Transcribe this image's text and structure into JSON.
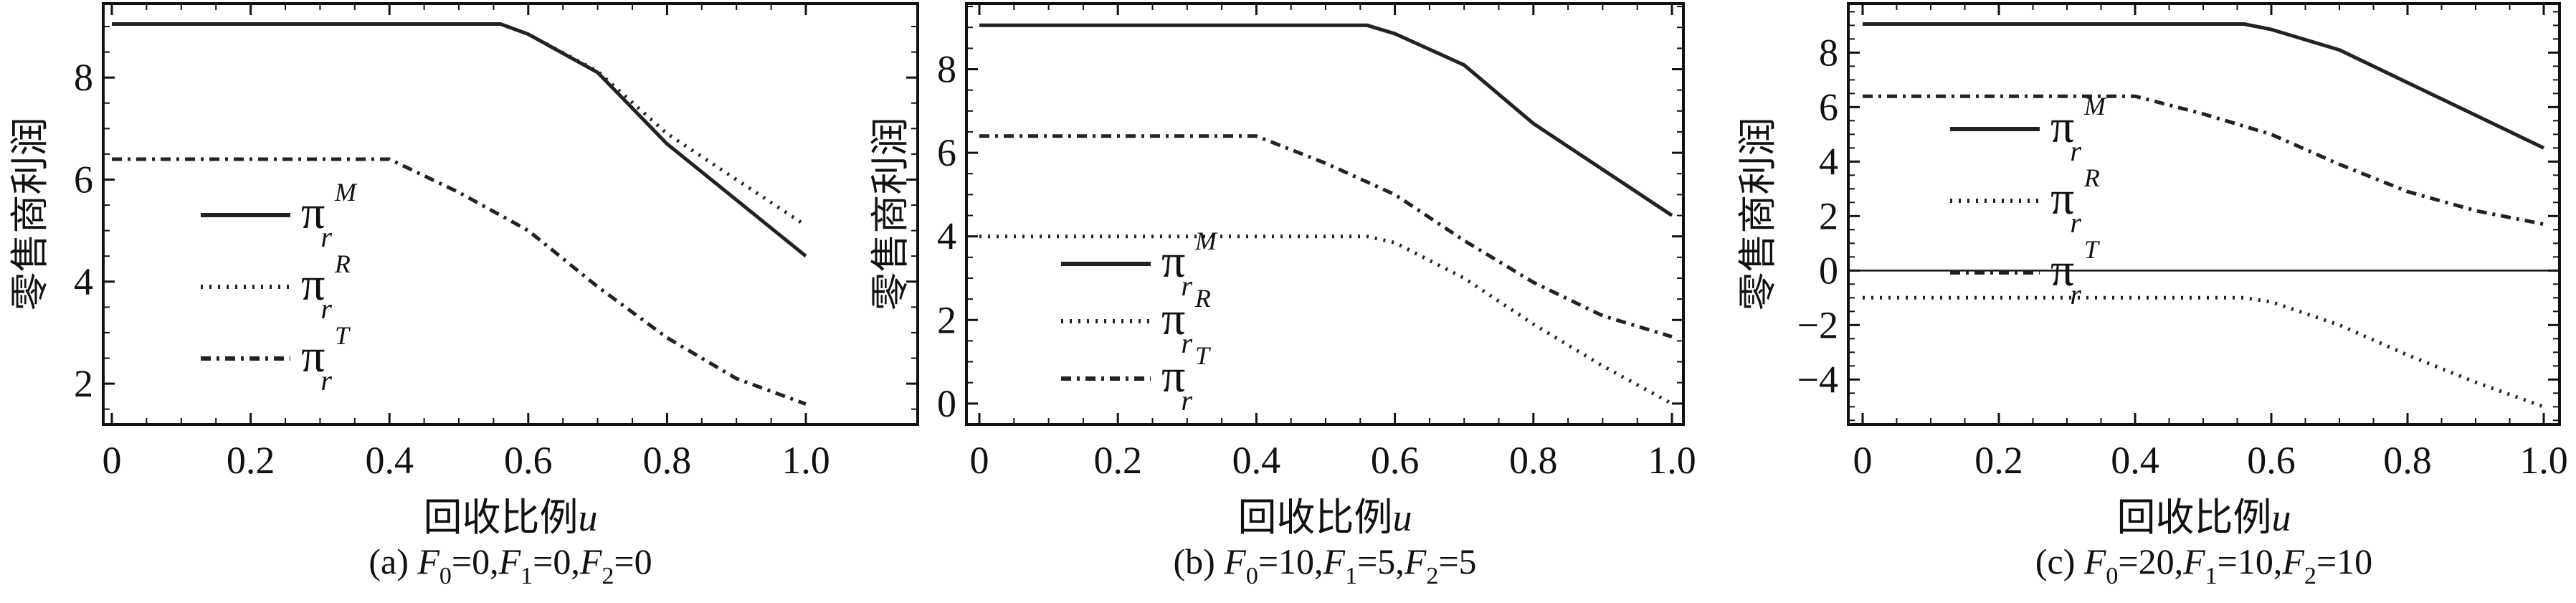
{
  "chart_data": [
    {
      "type": "line",
      "caption": {
        "label": "(a)",
        "params": [
          {
            "name": "F",
            "sub": "0",
            "value": "0"
          },
          {
            "name": "F",
            "sub": "1",
            "value": "0"
          },
          {
            "name": "F",
            "sub": "2",
            "value": "0"
          }
        ]
      },
      "xlabel": "回收比例",
      "xlabel_var": "u",
      "ylabel": "零售商利润",
      "xlim": [
        0,
        1
      ],
      "ylim": [
        1.2,
        9.45
      ],
      "xticks": [
        "0",
        "0.2",
        "0.4",
        "0.6",
        "0.8",
        "1.0"
      ],
      "yticks": [
        2,
        4,
        6,
        8
      ],
      "zero_line": false,
      "x": [
        0,
        0.4,
        0.5,
        0.56,
        0.6,
        0.7,
        0.8,
        0.9,
        1.0
      ],
      "series": [
        {
          "name": "π_r^M",
          "symbol": "π",
          "sub": "r",
          "sup": "M",
          "style": "solid",
          "values": [
            9.05,
            9.05,
            9.05,
            9.05,
            8.85,
            8.1,
            6.7,
            5.6,
            4.5
          ]
        },
        {
          "name": "π_r^R",
          "symbol": "π",
          "sub": "r",
          "sup": "R",
          "style": "dotted",
          "values": [
            9.05,
            9.05,
            9.05,
            9.05,
            8.85,
            8.12,
            6.9,
            6.0,
            5.1
          ]
        },
        {
          "name": "π_r^T",
          "symbol": "π",
          "sub": "r",
          "sup": "T",
          "style": "dashdot",
          "values": [
            6.4,
            6.4,
            5.75,
            5.3,
            5.0,
            3.9,
            2.9,
            2.1,
            1.6
          ]
        }
      ],
      "legend": "center-left"
    },
    {
      "type": "line",
      "caption": {
        "label": "(b)",
        "params": [
          {
            "name": "F",
            "sub": "0",
            "value": "10"
          },
          {
            "name": "F",
            "sub": "1",
            "value": "5"
          },
          {
            "name": "F",
            "sub": "2",
            "value": "5"
          }
        ]
      },
      "xlabel": "回收比例",
      "xlabel_var": "u",
      "ylabel": "零售商利润",
      "xlim": [
        0,
        1
      ],
      "ylim": [
        -0.5,
        9.57
      ],
      "xticks": [
        "0",
        "0.2",
        "0.4",
        "0.6",
        "0.8",
        "1.0"
      ],
      "yticks": [
        0,
        2,
        4,
        6,
        8
      ],
      "zero_line": false,
      "x": [
        0,
        0.4,
        0.5,
        0.56,
        0.6,
        0.7,
        0.8,
        0.9,
        1.0
      ],
      "series": [
        {
          "name": "π_r^M",
          "symbol": "π",
          "sub": "r",
          "sup": "M",
          "style": "solid",
          "values": [
            9.05,
            9.05,
            9.05,
            9.05,
            8.85,
            8.1,
            6.7,
            5.6,
            4.5
          ]
        },
        {
          "name": "π_r^R",
          "symbol": "π",
          "sub": "r",
          "sup": "R",
          "style": "dotted",
          "values": [
            4.0,
            4.0,
            4.0,
            4.0,
            3.85,
            3.0,
            1.9,
            0.9,
            0.0
          ]
        },
        {
          "name": "π_r^T",
          "symbol": "π",
          "sub": "r",
          "sup": "T",
          "style": "dashdot",
          "values": [
            6.4,
            6.4,
            5.75,
            5.3,
            5.0,
            3.9,
            2.9,
            2.1,
            1.6
          ]
        }
      ],
      "legend": "bottom-left"
    },
    {
      "type": "line",
      "caption": {
        "label": "(c)",
        "params": [
          {
            "name": "F",
            "sub": "0",
            "value": "20"
          },
          {
            "name": "F",
            "sub": "1",
            "value": "10"
          },
          {
            "name": "F",
            "sub": "2",
            "value": "10"
          }
        ]
      },
      "xlabel": "回收比例",
      "xlabel_var": "u",
      "ylabel": "零售商利润",
      "xlim": [
        0,
        1
      ],
      "ylim": [
        -5.65,
        9.8
      ],
      "xticks": [
        "0",
        "0.2",
        "0.4",
        "0.6",
        "0.8",
        "1.0"
      ],
      "yticks": [
        -4,
        -2,
        0,
        2,
        4,
        6,
        8
      ],
      "zero_line": true,
      "x": [
        0,
        0.4,
        0.5,
        0.56,
        0.6,
        0.7,
        0.8,
        0.9,
        1.0
      ],
      "series": [
        {
          "name": "π_r^M",
          "symbol": "π",
          "sub": "r",
          "sup": "M",
          "style": "solid",
          "values": [
            9.05,
            9.05,
            9.05,
            9.05,
            8.85,
            8.1,
            6.9,
            5.7,
            4.5
          ]
        },
        {
          "name": "π_r^R",
          "symbol": "π",
          "sub": "r",
          "sup": "R",
          "style": "dotted",
          "values": [
            -1.0,
            -1.0,
            -1.0,
            -1.0,
            -1.15,
            -2.0,
            -3.1,
            -4.1,
            -5.0
          ]
        },
        {
          "name": "π_r^T",
          "symbol": "π",
          "sub": "r",
          "sup": "T",
          "style": "dashdot",
          "values": [
            6.4,
            6.4,
            5.75,
            5.3,
            5.0,
            3.9,
            2.9,
            2.2,
            1.7
          ]
        }
      ],
      "legend": "center-left"
    }
  ]
}
